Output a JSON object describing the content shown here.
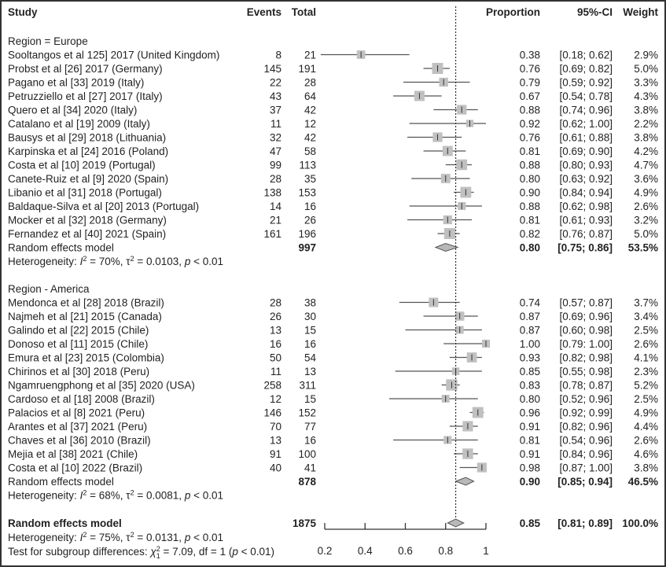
{
  "chart_data": {
    "type": "forest",
    "headers": {
      "study": "Study",
      "events": "Events",
      "total": "Total",
      "proportion": "Proportion",
      "ci": "95%-CI",
      "weight": "Weight"
    },
    "xlim": [
      0.2,
      1.0
    ],
    "xticks": [
      "0.2",
      "0.4",
      "0.6",
      "0.8",
      "1"
    ],
    "xtick_values": [
      0.2,
      0.4,
      0.6,
      0.8,
      1.0
    ],
    "reference_line": 0.85,
    "groups": [
      {
        "label": "Region = Europe",
        "studies": [
          {
            "study": "Sooltangos et al 125] 2017 (United Kingdom)",
            "events": "8",
            "total": "21",
            "prop": 0.38,
            "lo": 0.18,
            "hi": 0.62,
            "prop_text": "0.38",
            "ci_text": "[0.18; 0.62]",
            "weight_text": "2.9%",
            "weight": 2.9
          },
          {
            "study": "Probst et al [26] 2017 (Germany)",
            "events": "145",
            "total": "191",
            "prop": 0.76,
            "lo": 0.69,
            "hi": 0.82,
            "prop_text": "0.76",
            "ci_text": "[0.69; 0.82]",
            "weight_text": "5.0%",
            "weight": 5.0
          },
          {
            "study": "Pagano et al [33] 2019 (Italy)",
            "events": "22",
            "total": "28",
            "prop": 0.79,
            "lo": 0.59,
            "hi": 0.92,
            "prop_text": "0.79",
            "ci_text": "[0.59; 0.92]",
            "weight_text": "3.3%",
            "weight": 3.3
          },
          {
            "study": "Petruzziello et al [27] 2017 (Italy)",
            "events": "43",
            "total": "64",
            "prop": 0.67,
            "lo": 0.54,
            "hi": 0.78,
            "prop_text": "0.67",
            "ci_text": "[0.54; 0.78]",
            "weight_text": "4.3%",
            "weight": 4.3
          },
          {
            "study": "Quero et al [34] 2020 (Italy)",
            "events": "37",
            "total": "42",
            "prop": 0.88,
            "lo": 0.74,
            "hi": 0.96,
            "prop_text": "0.88",
            "ci_text": "[0.74; 0.96]",
            "weight_text": "3.8%",
            "weight": 3.8
          },
          {
            "study": "Catalano et al [19] 2009 (Italy)",
            "events": "11",
            "total": "12",
            "prop": 0.92,
            "lo": 0.62,
            "hi": 1.0,
            "prop_text": "0.92",
            "ci_text": "[0.62; 1.00]",
            "weight_text": "2.2%",
            "weight": 2.2
          },
          {
            "study": "Bausys et al [29] 2018 (Lithuania)",
            "events": "32",
            "total": "42",
            "prop": 0.76,
            "lo": 0.61,
            "hi": 0.88,
            "prop_text": "0.76",
            "ci_text": "[0.61; 0.88]",
            "weight_text": "3.8%",
            "weight": 3.8
          },
          {
            "study": "Karpinska et al [24] 2016 (Poland)",
            "events": "47",
            "total": "58",
            "prop": 0.81,
            "lo": 0.69,
            "hi": 0.9,
            "prop_text": "0.81",
            "ci_text": "[0.69; 0.90]",
            "weight_text": "4.2%",
            "weight": 4.2
          },
          {
            "study": "Costa et al [10] 2019 (Portugal)",
            "events": "99",
            "total": "113",
            "prop": 0.88,
            "lo": 0.8,
            "hi": 0.93,
            "prop_text": "0.88",
            "ci_text": "[0.80; 0.93]",
            "weight_text": "4.7%",
            "weight": 4.7
          },
          {
            "study": "Canete-Ruiz et al [9] 2020 (Spain)",
            "events": "28",
            "total": "35",
            "prop": 0.8,
            "lo": 0.63,
            "hi": 0.92,
            "prop_text": "0.80",
            "ci_text": "[0.63; 0.92]",
            "weight_text": "3.6%",
            "weight": 3.6
          },
          {
            "study": "Libanio et al [31] 2018 (Portugal)",
            "events": "138",
            "total": "153",
            "prop": 0.9,
            "lo": 0.84,
            "hi": 0.94,
            "prop_text": "0.90",
            "ci_text": "[0.84; 0.94]",
            "weight_text": "4.9%",
            "weight": 4.9
          },
          {
            "study": "Baldaque-Silva et al [20] 2013 (Portugal)",
            "events": "14",
            "total": "16",
            "prop": 0.88,
            "lo": 0.62,
            "hi": 0.98,
            "prop_text": "0.88",
            "ci_text": "[0.62; 0.98]",
            "weight_text": "2.6%",
            "weight": 2.6
          },
          {
            "study": "Mocker et al [32] 2018 (Germany)",
            "events": "21",
            "total": "26",
            "prop": 0.81,
            "lo": 0.61,
            "hi": 0.93,
            "prop_text": "0.81",
            "ci_text": "[0.61; 0.93]",
            "weight_text": "3.2%",
            "weight": 3.2
          },
          {
            "study": "Fernandez et al [40] 2021 (Spain)",
            "events": "161",
            "total": "196",
            "prop": 0.82,
            "lo": 0.76,
            "hi": 0.87,
            "prop_text": "0.82",
            "ci_text": "[0.76; 0.87]",
            "weight_text": "5.0%",
            "weight": 5.0
          }
        ],
        "model": {
          "label": "Random effects model",
          "total": "997",
          "prop": 0.8,
          "lo": 0.75,
          "hi": 0.86,
          "prop_text": "0.80",
          "ci_text": "[0.75; 0.86]",
          "weight_text": "53.5%"
        },
        "heterogeneity": {
          "prefix": "Heterogeneity: ",
          "i2": "I",
          "i2_rest": " = 70%, ",
          "tau": "τ",
          "tau_rest": " = 0.0103, ",
          "p": "p",
          "p_rest": " < 0.01"
        }
      },
      {
        "label": "Region - America",
        "studies": [
          {
            "study": "Mendonca et al [28] 2018 (Brazil)",
            "events": "28",
            "total": "38",
            "prop": 0.74,
            "lo": 0.57,
            "hi": 0.87,
            "prop_text": "0.74",
            "ci_text": "[0.57; 0.87]",
            "weight_text": "3.7%",
            "weight": 3.7
          },
          {
            "study": "Najmeh et al [21] 2015 (Canada)",
            "events": "26",
            "total": "30",
            "prop": 0.87,
            "lo": 0.69,
            "hi": 0.96,
            "prop_text": "0.87",
            "ci_text": "[0.69; 0.96]",
            "weight_text": "3.4%",
            "weight": 3.4
          },
          {
            "study": "Galindo et al [22] 2015 (Chile)",
            "events": "13",
            "total": "15",
            "prop": 0.87,
            "lo": 0.6,
            "hi": 0.98,
            "prop_text": "0.87",
            "ci_text": "[0.60; 0.98]",
            "weight_text": "2.5%",
            "weight": 2.5
          },
          {
            "study": "Donoso et al [11] 2015 (Chile)",
            "events": "16",
            "total": "16",
            "prop": 1.0,
            "lo": 0.79,
            "hi": 1.0,
            "prop_text": "1.00",
            "ci_text": "[0.79: 1.00]",
            "weight_text": "2.6%",
            "weight": 2.6
          },
          {
            "study": "Emura et al [23] 2015 (Colombia)",
            "events": "50",
            "total": "54",
            "prop": 0.93,
            "lo": 0.82,
            "hi": 0.98,
            "prop_text": "0.93",
            "ci_text": "[0.82; 0.98]",
            "weight_text": "4.1%",
            "weight": 4.1
          },
          {
            "study": "Chirinos et al [30] 2018 (Peru)",
            "events": "11",
            "total": "13",
            "prop": 0.85,
            "lo": 0.55,
            "hi": 0.98,
            "prop_text": "0.85",
            "ci_text": "[0.55; 0.98]",
            "weight_text": "2.3%",
            "weight": 2.3
          },
          {
            "study": "Ngamruengphong et al [35] 2020 (USA)",
            "events": "258",
            "total": "311",
            "prop": 0.83,
            "lo": 0.78,
            "hi": 0.87,
            "prop_text": "0.83",
            "ci_text": "[0.78; 0.87]",
            "weight_text": "5.2%",
            "weight": 5.2
          },
          {
            "study": "Cardoso et al [18] 2008 (Brazil)",
            "events": "12",
            "total": "15",
            "prop": 0.8,
            "lo": 0.52,
            "hi": 0.96,
            "prop_text": "0.80",
            "ci_text": "[0.52; 0.96]",
            "weight_text": "2.5%",
            "weight": 2.5
          },
          {
            "study": "Palacios et al [8] 2021 (Peru)",
            "events": "146",
            "total": "152",
            "prop": 0.96,
            "lo": 0.92,
            "hi": 0.99,
            "prop_text": "0.96",
            "ci_text": "[0.92; 0.99]",
            "weight_text": "4.9%",
            "weight": 4.9
          },
          {
            "study": "Arantes et al [37] 2021 (Peru)",
            "events": "70",
            "total": "77",
            "prop": 0.91,
            "lo": 0.82,
            "hi": 0.96,
            "prop_text": "0.91",
            "ci_text": "[0.82; 0.96]",
            "weight_text": "4.4%",
            "weight": 4.4
          },
          {
            "study": "Chaves et al [36] 2010 (Brazil)",
            "events": "13",
            "total": "16",
            "prop": 0.81,
            "lo": 0.54,
            "hi": 0.96,
            "prop_text": "0.81",
            "ci_text": "[0.54; 0.96]",
            "weight_text": "2.6%",
            "weight": 2.6
          },
          {
            "study": "Mejia et al [38] 2021 (Chile)",
            "events": "91",
            "total": "100",
            "prop": 0.91,
            "lo": 0.84,
            "hi": 0.96,
            "prop_text": "0.91",
            "ci_text": "[0.84; 0.96]",
            "weight_text": "4.6%",
            "weight": 4.6
          },
          {
            "study": "Costa et al [10] 2022 (Brazil)",
            "events": "40",
            "total": "41",
            "prop": 0.98,
            "lo": 0.87,
            "hi": 1.0,
            "prop_text": "0.98",
            "ci_text": "[0.87; 1.00]",
            "weight_text": "3.8%",
            "weight": 3.8
          }
        ],
        "model": {
          "label": "Random effects model",
          "total": "878",
          "prop": 0.9,
          "lo": 0.85,
          "hi": 0.94,
          "prop_text": "0.90",
          "ci_text": "[0.85; 0.94]",
          "weight_text": "46.5%"
        },
        "heterogeneity": {
          "prefix": "Heterogeneity: ",
          "i2": "I",
          "i2_rest": " = 68%, ",
          "tau": "τ",
          "tau_rest": " = 0.0081, ",
          "p": "p",
          "p_rest": " < 0.01"
        }
      }
    ],
    "overall": {
      "model": {
        "label": "Random effects model",
        "total": "1875",
        "prop": 0.85,
        "lo": 0.81,
        "hi": 0.89,
        "prop_text": "0.85",
        "ci_text": "[0.81; 0.89]",
        "weight_text": "100.0%"
      },
      "heterogeneity": {
        "prefix": "Heterogeneity: ",
        "i2": "I",
        "i2_rest": " = 75%, ",
        "tau": "τ",
        "tau_rest": " = 0.0131, ",
        "p": "p",
        "p_rest": " < 0.01"
      },
      "subgroup_test": {
        "prefix": "Test for subgroup differences: ",
        "chi": "χ",
        "chi_sub": "1",
        "rest1": " = 7.09, df = 1 (",
        "p": "p",
        "rest2": " < 0.01)"
      }
    },
    "colors": {
      "square": "#c0c0c0",
      "line": "#555555",
      "diamond": "#b8b8b8",
      "text": "#222222"
    }
  }
}
